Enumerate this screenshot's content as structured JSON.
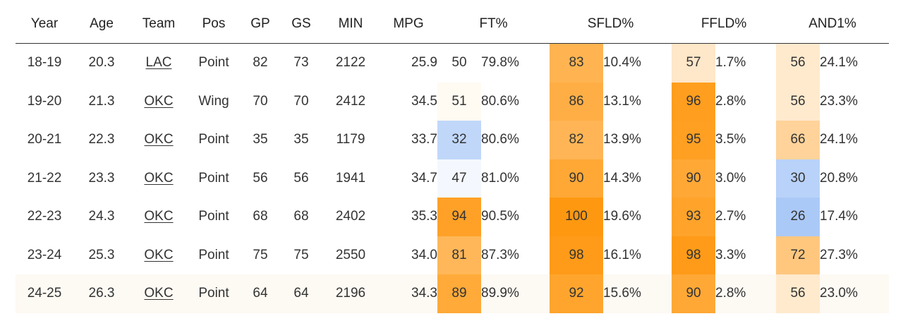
{
  "headers": {
    "year": "Year",
    "age": "Age",
    "team": "Team",
    "pos": "Pos",
    "gp": "GP",
    "gs": "GS",
    "min": "MIN",
    "mpg": "MPG",
    "ft": "FT%",
    "sfld": "SFLD%",
    "ffld": "FFLD%",
    "and1": "AND1%"
  },
  "colors": {
    "orange_strong": "#ff9811",
    "blue": "#a7c7f7",
    "neutral_light": "#f2f7ff",
    "row_highlight": "#fdf9f3"
  },
  "rows": [
    {
      "year": "18-19",
      "age": "20.3",
      "team": "LAC",
      "pos": "Point",
      "gp": "82",
      "gs": "73",
      "min": "2122",
      "mpg": "25.9",
      "ft_p": "50",
      "ft": "79.8%",
      "sfld_p": "83",
      "sfld": "10.4%",
      "ffld_p": "57",
      "ffld": "1.7%",
      "and1_p": "56",
      "and1": "24.1%"
    },
    {
      "year": "19-20",
      "age": "21.3",
      "team": "OKC",
      "pos": "Wing",
      "gp": "70",
      "gs": "70",
      "min": "2412",
      "mpg": "34.5",
      "ft_p": "51",
      "ft": "80.6%",
      "sfld_p": "86",
      "sfld": "13.1%",
      "ffld_p": "96",
      "ffld": "2.8%",
      "and1_p": "56",
      "and1": "23.3%"
    },
    {
      "year": "20-21",
      "age": "22.3",
      "team": "OKC",
      "pos": "Point",
      "gp": "35",
      "gs": "35",
      "min": "1179",
      "mpg": "33.7",
      "ft_p": "32",
      "ft": "80.6%",
      "sfld_p": "82",
      "sfld": "13.9%",
      "ffld_p": "95",
      "ffld": "3.5%",
      "and1_p": "66",
      "and1": "24.1%"
    },
    {
      "year": "21-22",
      "age": "23.3",
      "team": "OKC",
      "pos": "Point",
      "gp": "56",
      "gs": "56",
      "min": "1941",
      "mpg": "34.7",
      "ft_p": "47",
      "ft": "81.0%",
      "sfld_p": "90",
      "sfld": "14.3%",
      "ffld_p": "90",
      "ffld": "3.0%",
      "and1_p": "30",
      "and1": "20.8%"
    },
    {
      "year": "22-23",
      "age": "24.3",
      "team": "OKC",
      "pos": "Point",
      "gp": "68",
      "gs": "68",
      "min": "2402",
      "mpg": "35.3",
      "ft_p": "94",
      "ft": "90.5%",
      "sfld_p": "100",
      "sfld": "19.6%",
      "ffld_p": "93",
      "ffld": "2.7%",
      "and1_p": "26",
      "and1": "17.4%"
    },
    {
      "year": "23-24",
      "age": "25.3",
      "team": "OKC",
      "pos": "Point",
      "gp": "75",
      "gs": "75",
      "min": "2550",
      "mpg": "34.0",
      "ft_p": "81",
      "ft": "87.3%",
      "sfld_p": "98",
      "sfld": "16.1%",
      "ffld_p": "98",
      "ffld": "3.3%",
      "and1_p": "72",
      "and1": "27.3%"
    },
    {
      "year": "24-25",
      "age": "26.3",
      "team": "OKC",
      "pos": "Point",
      "gp": "64",
      "gs": "64",
      "min": "2196",
      "mpg": "34.3",
      "ft_p": "89",
      "ft": "89.9%",
      "sfld_p": "92",
      "sfld": "15.6%",
      "ffld_p": "90",
      "ffld": "2.8%",
      "and1_p": "56",
      "and1": "23.0%"
    }
  ]
}
